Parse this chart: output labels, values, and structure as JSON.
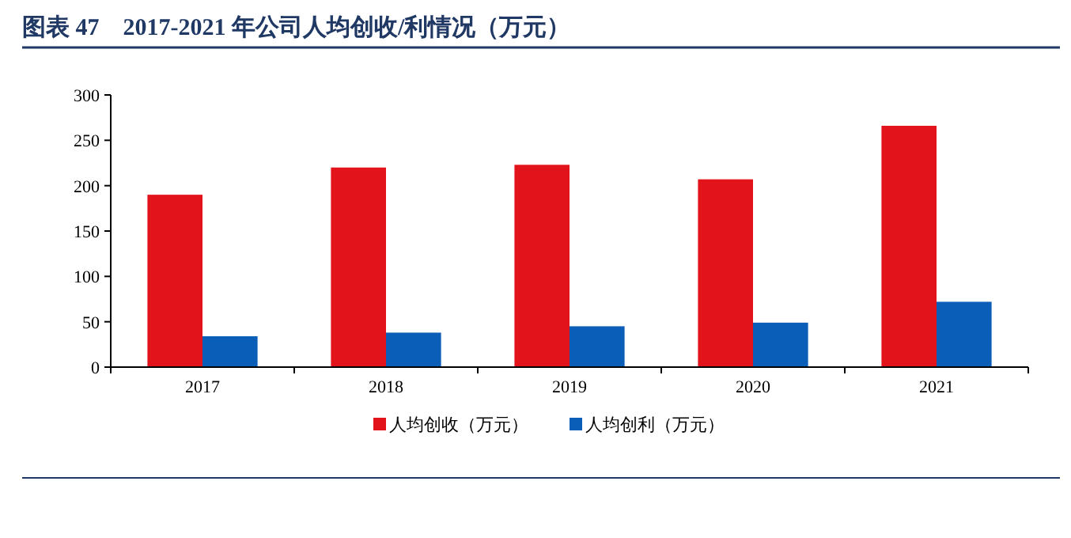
{
  "chart_data": {
    "type": "bar",
    "title": "图表 47　2017-2021 年公司人均创收/利情况（万元）",
    "categories": [
      "2017",
      "2018",
      "2019",
      "2020",
      "2021"
    ],
    "series": [
      {
        "name": "人均创收（万元）",
        "color": "#e3131b",
        "values": [
          190,
          220,
          223,
          207,
          266
        ]
      },
      {
        "name": "人均创利（万元）",
        "color": "#0a5eb8",
        "values": [
          34,
          38,
          45,
          49,
          72
        ]
      }
    ],
    "ylim": [
      0,
      300
    ],
    "yticks": [
      0,
      50,
      100,
      150,
      200,
      250,
      300
    ],
    "grid": false,
    "legend": "bottom"
  }
}
